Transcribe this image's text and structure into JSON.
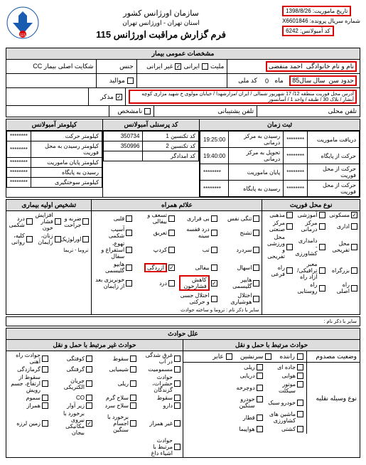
{
  "header": {
    "org": "سازمان اورژانس کشور",
    "region": "استان تهران - اورژانس تهران",
    "form_title": "فرم گزارش مراقبت اورژانس 115",
    "mission_date_label": "تاریخ ماموریت",
    "mission_date": "1398/8/26",
    "serial_label": "شماره سریال پرونده",
    "serial": "X6601846",
    "amb_code_label": "کد آمبولانس",
    "amb_code": "6242"
  },
  "patient_section_title": "مشخصات عمومی بیمار",
  "patient": {
    "name_label": "نام و نام خانوادگی",
    "name": "احمد منفضی",
    "age_label": "حدود سن",
    "age_value": "سال  سال85",
    "nationality_label": "ملیت",
    "iranian": "ایرانی",
    "non_iranian": "غیر ایرانی",
    "gender_label": "جنس",
    "complaint_label": "شکایت اصلی بیمار CC",
    "nat_code_label": "کد ملی",
    "month_label": "ماه",
    "month_val": "0",
    "newborn": "موالید",
    "male": "مذکر",
    "unknown": "نامشخص",
    "address_label": "آدرس محل فوریت",
    "address": "منطقه 12/ 17 شهریور شمالی / ایران /مزارشهدا / خیابان مولوی خ شهید مزاری کوچه آبشار / بلاک 30 / طبقه / واحد 1 / آسانسور",
    "phone1_label": "تلفن محلی",
    "phone2_label": "تلفن یشتیبانی"
  },
  "time_section_title": "ثبت زمان",
  "time": {
    "rows": [
      {
        "l1": "دریافت ماموریت",
        "v1": "********",
        "l2": "رسیدن به مرکز درمانی",
        "v2": "19:25:00"
      },
      {
        "l1": "حرکت از پایگاه",
        "v1": "********",
        "l2": "تحویل به مرکز درمانی",
        "v2": "19:40:00"
      },
      {
        "l1": "حرکت از محل فوریت",
        "v1": "********",
        "l2": "پایان ماموریت",
        "v2": "********"
      },
      {
        "l1": "حرکت از محل فوریت",
        "v1": "********",
        "l2": "رسیدن به پایگاه",
        "v2": "********"
      }
    ]
  },
  "personnel_title": "کد پرسنلی آمبولانس",
  "personnel": [
    {
      "role": "کد تکنسین 1",
      "code": "350734"
    },
    {
      "role": "کد تکنسین 2",
      "code": "350996"
    },
    {
      "role": "کد امدادگر",
      "code": ""
    }
  ],
  "km_title": "کیلومتر آمبولانس",
  "km_rows": [
    "کیلومتر حرکت",
    "کیلومتر رسیدن به محل فوریت",
    "کیلومتر پایان ماموریت",
    "رسیدن به پایگاه",
    "کیلومتر سوختگیری"
  ],
  "emergency_type_title": "نوع محل فوریت",
  "emergency_types": [
    {
      "t": "مسکونی",
      "c": true
    },
    {
      "t": "آموزشی",
      "c": false
    },
    {
      "t": "مذهبی",
      "c": false
    },
    {
      "t": "اداری",
      "c": false
    },
    {
      "t": "مرکز درمانی",
      "c": false
    },
    {
      "t": "مرکز صنعتی",
      "c": false
    },
    {
      "t": "محل تفریحی",
      "c": false
    },
    {
      "t": "دامداری - کشاورزی",
      "c": false
    },
    {
      "t": "محل ورزشی و تفریحی",
      "c": false
    },
    {
      "t": "بزرگراه",
      "c": false
    },
    {
      "t": "معبر ترافیکی/آزاد راه",
      "c": false
    },
    {
      "t": "راه فرعی",
      "c": false
    },
    {
      "t": "راه اصلی",
      "c": false
    },
    {
      "t": "راه روستایی",
      "c": false
    }
  ],
  "symptoms_title": "علائم همراه",
  "symptoms": [
    {
      "t": "تنگی نفس",
      "c": false
    },
    {
      "t": "بی قراری",
      "c": false
    },
    {
      "t": "تسعف و بیفالی",
      "c": false
    },
    {
      "t": "قلبی",
      "c": false
    },
    {
      "t": "تشنج",
      "c": false
    },
    {
      "t": "درد قفسه سینه",
      "c": false
    },
    {
      "t": "تعریق",
      "c": false
    },
    {
      "t": "آسیب شکمی",
      "c": false
    },
    {
      "t": "سردرد",
      "c": false
    },
    {
      "t": "تب",
      "c": false
    },
    {
      "t": "کردپ",
      "c": false
    },
    {
      "t": "تهوع، استفراغ و سفال",
      "c": false
    },
    {
      "t": "اسهال",
      "c": false
    },
    {
      "t": "بیفالی",
      "c": false
    },
    {
      "t": "آزردگی",
      "c": true
    },
    {
      "t": "هایپو گلیسمی",
      "c": false
    },
    {
      "t": "هایپر گلیسمی",
      "c": false
    },
    {
      "t": "کاهش فشارخون",
      "c": true
    },
    {
      "t": "درد",
      "c": false
    },
    {
      "t": "خونریزی بعد از زایمان",
      "c": false
    },
    {
      "t": "اختلال هوشیاری",
      "c": false
    },
    {
      "t": "اختلال حسی و حرکتی",
      "c": false
    }
  ],
  "diagnosis_title": "تشخیص اولیه بیماری",
  "diagnosis": [
    {
      "t": "ضربه و جراحت",
      "c": false
    },
    {
      "t": "افزایش فشار خون",
      "c": false
    },
    {
      "t": "درد شکمی",
      "c": false
    },
    {
      "t": "اورلوژیک",
      "c": false
    },
    {
      "t": "زنان، زایمان",
      "c": false
    },
    {
      "t": "کلیه، روانی",
      "c": false
    }
  ],
  "other_doc_label": "سایر با ذکر نام : تروما و ساخته حوادث",
  "trauma_label": "تروما - تریما",
  "prev_label": "سایر با ذکر نام :",
  "accident_title": "علل حوادث",
  "acc_related_title": "حوادث مرتبط با حمل و نقل",
  "acc_unrelated_title": "حوادث غیر مرتبط با حمل و نقل",
  "status_label": "وضعیت مصدوم",
  "vehicle_label": "نوع وسیله نقلیه",
  "acc_status": [
    "راننده",
    "سرنشین",
    "عابر"
  ],
  "acc_vehicles": [
    {
      "t": "جاده ای",
      "c": false
    },
    {
      "t": "ریلی",
      "c": false
    },
    {
      "t": "هوایی",
      "c": false
    },
    {
      "t": "دریایی",
      "c": false
    },
    {
      "t": "موتور سیکلت",
      "c": false
    },
    {
      "t": "دوچرخه",
      "c": false
    },
    {
      "t": "خودرو سبک",
      "c": false
    },
    {
      "t": "خودرو سنگین",
      "c": false
    },
    {
      "t": "ماشین های کشاورزی",
      "c": false
    },
    {
      "t": "قطار",
      "c": false
    },
    {
      "t": "کشتی",
      "c": false
    },
    {
      "t": "هواپیما",
      "c": false
    }
  ],
  "unrelated": [
    {
      "t": "غرق شدگی در آب",
      "c": false
    },
    {
      "t": "سقوط",
      "c": false
    },
    {
      "t": "کوفتگی",
      "c": false
    },
    {
      "t": "حوادث راه آهنی",
      "c": false
    },
    {
      "t": "مسمومیت",
      "c": false
    },
    {
      "t": "شیمیایی",
      "c": false
    },
    {
      "t": "گرفتگی",
      "c": false
    },
    {
      "t": "گرمازدگی",
      "c": false
    },
    {
      "t": "حوادث حشرات، گزندگان",
      "c": false
    },
    {
      "t": "ریلی",
      "c": false
    },
    {
      "t": "جریان الکتریکی",
      "c": false
    },
    {
      "t": "سقوط از ارتفاع، جسم رویش",
      "c": false
    },
    {
      "t": "سقوط",
      "c": false
    },
    {
      "t": "سلاح گرم",
      "c": false
    },
    {
      "t": "CO",
      "c": false
    },
    {
      "t": "سموم",
      "c": false
    },
    {
      "t": "دارو",
      "c": false
    },
    {
      "t": "سلاح سرد",
      "c": false
    },
    {
      "t": "زیر آوار",
      "c": false
    },
    {
      "t": "همراز",
      "c": false
    },
    {
      "t": "غیر همراز",
      "c": false
    },
    {
      "t": "برخورد با اجسام سنگین",
      "c": false
    },
    {
      "t": "برخورد با نیروی مکانیکی بیجان",
      "c": true
    },
    {
      "t": "زمین لرزه",
      "c": false
    },
    {
      "t": "حوادث مرتبط با اشیاء داغ",
      "c": false
    }
  ]
}
